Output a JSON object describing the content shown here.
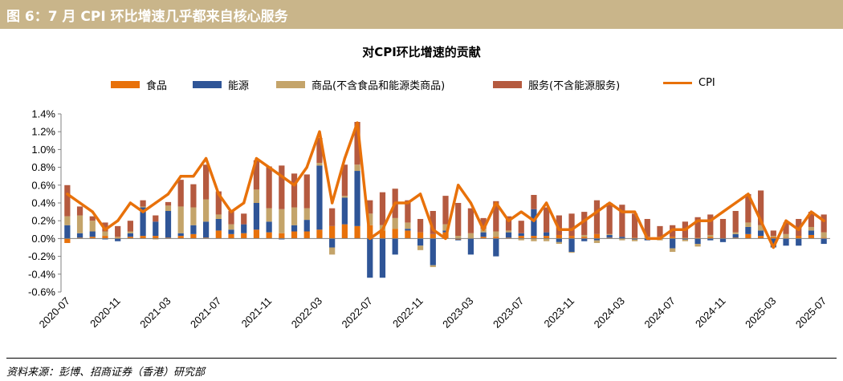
{
  "header": {
    "title": "图 6：7 月 CPI 环比增速几乎都来自核心服务"
  },
  "source_note": "资料来源：彭博、招商证券（香港）研究部",
  "chart_data": {
    "type": "bar",
    "title": "对CPI环比增速的贡献",
    "xlabel": "",
    "ylabel": "",
    "ylim": [
      -0.6,
      1.4
    ],
    "y_ticks": [
      "-0.6%",
      "-0.4%",
      "-0.2%",
      "0.0%",
      "0.2%",
      "0.4%",
      "0.6%",
      "0.8%",
      "1.0%",
      "1.2%",
      "1.4%"
    ],
    "y_tick_values": [
      -0.6,
      -0.4,
      -0.2,
      0.0,
      0.2,
      0.4,
      0.6,
      0.8,
      1.0,
      1.2,
      1.4
    ],
    "grid": false,
    "legend_position": "top",
    "stacked": true,
    "x_tick_labels": [
      "2020-07",
      "2020-11",
      "2021-03",
      "2021-07",
      "2021-11",
      "2022-03",
      "2022-07",
      "2022-11",
      "2023-03",
      "2023-07",
      "2023-11",
      "2024-03",
      "2024-07",
      "2024-11",
      "2025-03",
      "2025-07"
    ],
    "categories": [
      "2020-07",
      "2020-08",
      "2020-09",
      "2020-10",
      "2020-11",
      "2020-12",
      "2021-01",
      "2021-02",
      "2021-03",
      "2021-04",
      "2021-05",
      "2021-06",
      "2021-07",
      "2021-08",
      "2021-09",
      "2021-10",
      "2021-11",
      "2021-12",
      "2022-01",
      "2022-02",
      "2022-03",
      "2022-04",
      "2022-05",
      "2022-06",
      "2022-07",
      "2022-08",
      "2022-09",
      "2022-10",
      "2022-11",
      "2022-12",
      "2023-01",
      "2023-02",
      "2023-03",
      "2023-04",
      "2023-05",
      "2023-06",
      "2023-07",
      "2023-08",
      "2023-09",
      "2023-10",
      "2023-11",
      "2023-12",
      "2024-01",
      "2024-02",
      "2024-03",
      "2024-04",
      "2024-05",
      "2024-06",
      "2024-07",
      "2024-08",
      "2024-09",
      "2024-10",
      "2024-11",
      "2024-12",
      "2025-01",
      "2025-02",
      "2025-03",
      "2025-04",
      "2025-05",
      "2025-06",
      "2025-07"
    ],
    "series": [
      {
        "name": "食品",
        "color": "#e8710a",
        "kind": "bar",
        "values": [
          -0.05,
          0.01,
          0.02,
          0.03,
          0.01,
          0.02,
          0.03,
          0.03,
          0.01,
          0.03,
          0.05,
          0.01,
          0.09,
          0.05,
          0.06,
          0.1,
          0.07,
          0.06,
          0.08,
          0.08,
          0.1,
          0.14,
          0.16,
          0.14,
          0.15,
          0.09,
          0.11,
          0.09,
          0.07,
          0.05,
          0.07,
          -0.01,
          0.0,
          0.02,
          0.02,
          0.01,
          0.03,
          0.03,
          0.03,
          0.04,
          0.03,
          0.02,
          0.05,
          0.01,
          0.0,
          0.01,
          0.0,
          0.02,
          0.02,
          0.01,
          0.01,
          0.02,
          0.0,
          0.01,
          0.05,
          0.03,
          0.02,
          0.01,
          0.03,
          0.04,
          0.01
        ]
      },
      {
        "name": "能源",
        "color": "#2f5597",
        "kind": "bar",
        "values": [
          0.15,
          0.05,
          0.06,
          -0.01,
          -0.03,
          0.04,
          0.32,
          0.16,
          0.3,
          0.03,
          0.1,
          0.18,
          0.13,
          0.05,
          0.1,
          0.3,
          0.12,
          -0.01,
          0.07,
          0.13,
          0.72,
          -0.1,
          0.3,
          0.62,
          -0.44,
          -0.44,
          -0.18,
          0.02,
          -0.08,
          -0.3,
          0.02,
          -0.01,
          -0.18,
          0.05,
          -0.2,
          0.06,
          0.03,
          0.3,
          0.04,
          -0.04,
          -0.15,
          -0.03,
          -0.02,
          0.03,
          0.02,
          -0.01,
          -0.02,
          0.0,
          -0.11,
          -0.01,
          -0.06,
          -0.02,
          -0.04,
          0.04,
          0.08,
          0.06,
          -0.1,
          -0.08,
          -0.08,
          0.05,
          -0.06
        ]
      },
      {
        "name": "商品(不含食品和能源类商品)",
        "color": "#c4a46a",
        "kind": "bar",
        "values": [
          0.1,
          0.2,
          0.12,
          0.05,
          0.01,
          0.02,
          0.01,
          -0.01,
          0.06,
          0.3,
          0.2,
          0.25,
          0.05,
          0.06,
          0.0,
          0.15,
          0.15,
          0.27,
          0.2,
          0.13,
          0.03,
          -0.08,
          0.02,
          0.07,
          0.13,
          0.06,
          0.12,
          0.07,
          -0.05,
          -0.02,
          0.07,
          0.03,
          0.06,
          0.04,
          0.06,
          0.02,
          -0.02,
          -0.03,
          -0.03,
          -0.02,
          -0.01,
          0.02,
          -0.03,
          0.01,
          -0.02,
          -0.02,
          0.02,
          -0.02,
          -0.04,
          -0.02,
          -0.03,
          0.02,
          0.0,
          0.02,
          0.05,
          0.06,
          0.01,
          0.04,
          0.0,
          0.04,
          0.06
        ]
      },
      {
        "name": "服务(不含能源服务)",
        "color": "#b55a3f",
        "kind": "bar",
        "values": [
          0.35,
          0.1,
          0.05,
          0.1,
          0.12,
          0.12,
          0.07,
          0.07,
          0.04,
          0.3,
          0.26,
          0.39,
          0.26,
          0.15,
          0.12,
          0.33,
          0.47,
          0.49,
          0.38,
          0.38,
          0.28,
          0.2,
          0.35,
          0.48,
          0.15,
          0.37,
          0.33,
          0.25,
          0.15,
          0.26,
          0.32,
          0.37,
          0.28,
          0.12,
          0.34,
          0.16,
          0.14,
          0.16,
          0.28,
          0.22,
          0.25,
          0.26,
          0.38,
          0.35,
          0.36,
          0.27,
          0.2,
          0.12,
          0.13,
          0.18,
          0.23,
          0.23,
          0.22,
          0.24,
          0.32,
          0.39,
          0.06,
          0.13,
          0.19,
          0.17,
          0.2
        ]
      },
      {
        "name": "CPI",
        "color": "#e8710a",
        "kind": "line",
        "values": [
          0.5,
          0.4,
          0.3,
          0.1,
          0.2,
          0.4,
          0.3,
          0.4,
          0.5,
          0.7,
          0.7,
          0.9,
          0.5,
          0.3,
          0.4,
          0.9,
          0.8,
          0.7,
          0.6,
          0.8,
          1.2,
          0.4,
          0.9,
          1.3,
          0.0,
          0.1,
          0.4,
          0.4,
          0.5,
          0.1,
          0.0,
          0.6,
          0.4,
          0.1,
          0.4,
          0.2,
          0.3,
          0.2,
          0.4,
          0.1,
          0.1,
          0.2,
          0.3,
          0.4,
          0.3,
          0.3,
          0.0,
          0.0,
          0.1,
          0.1,
          0.2,
          0.2,
          0.3,
          0.4,
          0.5,
          0.2,
          -0.1,
          0.2,
          0.1,
          0.3,
          0.2
        ]
      }
    ]
  }
}
